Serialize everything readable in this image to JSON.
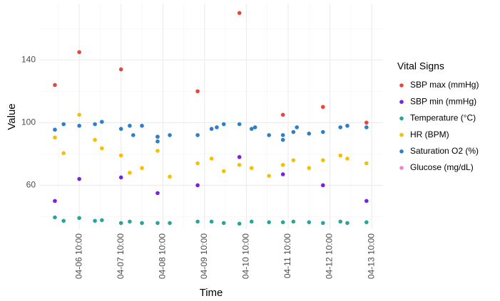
{
  "chart_data": {
    "type": "scatter",
    "x_label": "Time",
    "y_label": "Value",
    "legend_title": "Vital Signs",
    "legend_position": "right",
    "grid": true,
    "xlim": [
      "04-05 11:00",
      "04-13 16:30"
    ],
    "xticks": [
      "04-06 10:00",
      "04-07 10:00",
      "04-08 10:00",
      "04-09 10:00",
      "04-10 10:00",
      "04-11 10:00",
      "04-12 10:00",
      "04-13 10:00"
    ],
    "ylim": [
      32,
      176
    ],
    "yticks": [
      60,
      100,
      140
    ],
    "series": [
      {
        "name": "SBP max (mmHg)",
        "color": "#e8453c",
        "x": [
          "04-05 20:00",
          "04-06 10:00",
          "04-07 10:00",
          "04-08 07:00",
          "04-09 06:00",
          "04-10 06:00",
          "04-11 07:00",
          "04-12 06:00",
          "04-13 07:00"
        ],
        "values": [
          124,
          145,
          134,
          91,
          120,
          170,
          105,
          110,
          100
        ]
      },
      {
        "name": "SBP min (mmHg)",
        "color": "#7b1fe0",
        "x": [
          "04-05 20:00",
          "04-06 10:00",
          "04-07 10:00",
          "04-08 07:00",
          "04-09 06:00",
          "04-10 06:00",
          "04-11 07:00",
          "04-12 06:00",
          "04-13 07:00"
        ],
        "values": [
          50,
          64,
          65,
          55,
          60,
          78,
          67,
          60,
          50
        ]
      },
      {
        "name": "Temperature (°C)",
        "color": "#26a69a",
        "x": [
          "04-05 20:00",
          "04-06 01:00",
          "04-06 10:00",
          "04-06 19:00",
          "04-06 23:00",
          "04-07 10:00",
          "04-07 15:00",
          "04-07 22:00",
          "04-08 07:00",
          "04-08 14:00",
          "04-09 06:00",
          "04-09 14:00",
          "04-09 21:00",
          "04-10 06:00",
          "04-10 13:00",
          "04-10 23:00",
          "04-11 07:00",
          "04-11 13:00",
          "04-11 22:00",
          "04-12 06:00",
          "04-12 16:00",
          "04-12 20:00",
          "04-13 07:00"
        ],
        "values": [
          39.5,
          37.3,
          39.1,
          37.3,
          37.7,
          35.9,
          36.8,
          35.9,
          35.9,
          35.9,
          36.8,
          36.8,
          35.9,
          35.5,
          36.8,
          36.4,
          36.4,
          36.8,
          36.4,
          35.9,
          36.8,
          35.9,
          36.4
        ]
      },
      {
        "name": "HR (BPM)",
        "color": "#f5c000",
        "x": [
          "04-05 20:00",
          "04-06 01:00",
          "04-06 10:00",
          "04-06 19:00",
          "04-06 23:00",
          "04-07 10:00",
          "04-07 15:00",
          "04-07 22:00",
          "04-08 07:00",
          "04-08 14:00",
          "04-09 06:00",
          "04-09 14:00",
          "04-09 21:00",
          "04-10 06:00",
          "04-10 13:00",
          "04-10 23:00",
          "04-11 07:00",
          "04-11 13:00",
          "04-11 22:00",
          "04-12 06:00",
          "04-12 16:00",
          "04-12 20:00",
          "04-13 07:00"
        ],
        "values": [
          90.5,
          80.5,
          105,
          89,
          83.6,
          79,
          68,
          71,
          82,
          65.5,
          74,
          77,
          69,
          73,
          71,
          66,
          73,
          76,
          71,
          76,
          79,
          77,
          74
        ]
      },
      {
        "name": "Saturation O2 (%)",
        "color": "#2d7fc9",
        "x": [
          "04-05 20:00",
          "04-06 01:00",
          "04-06 10:00",
          "04-06 19:00",
          "04-06 23:00",
          "04-07 10:00",
          "04-07 15:00",
          "04-07 17:00",
          "04-07 22:00",
          "04-08 07:00",
          "04-08 07:00",
          "04-08 14:00",
          "04-09 06:00",
          "04-09 14:00",
          "04-09 17:00",
          "04-09 21:00",
          "04-10 06:00",
          "04-10 13:00",
          "04-10 15:00",
          "04-10 23:00",
          "04-11 07:00",
          "04-11 07:00",
          "04-11 13:00",
          "04-11 15:00",
          "04-11 22:00",
          "04-12 06:00",
          "04-12 16:00",
          "04-12 20:00",
          "04-13 07:00"
        ],
        "values": [
          95.5,
          99,
          98,
          99,
          100.5,
          96,
          98,
          92,
          98,
          88,
          91,
          92,
          92,
          96,
          97,
          99,
          99,
          96,
          97,
          92,
          92,
          89,
          94,
          97,
          93,
          94,
          97,
          98,
          97
        ]
      },
      {
        "name": "Glucose (mg/dL)",
        "color": "#e78ac3",
        "x": [],
        "values": []
      }
    ]
  }
}
